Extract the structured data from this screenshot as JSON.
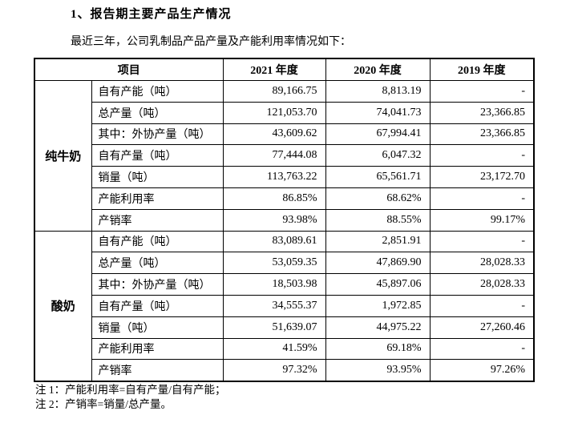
{
  "page": {
    "title": "1、报告期主要产品生产情况",
    "subtitle": "最近三年，公司乳制品产品产量及产能利用率情况如下："
  },
  "table": {
    "headers": [
      "项目",
      "2021 年度",
      "2020 年度",
      "2019 年度"
    ],
    "groups": [
      {
        "name": "纯牛奶",
        "rows": [
          {
            "label": "自有产能（吨）",
            "values": [
              "89,166.75",
              "8,813.19",
              "-"
            ]
          },
          {
            "label": "总产量（吨）",
            "values": [
              "121,053.70",
              "74,041.73",
              "23,366.85"
            ]
          },
          {
            "label": "其中：外协产量（吨）",
            "values": [
              "43,609.62",
              "67,994.41",
              "23,366.85"
            ]
          },
          {
            "label": "自有产量（吨）",
            "values": [
              "77,444.08",
              "6,047.32",
              "-"
            ]
          },
          {
            "label": "销量（吨）",
            "values": [
              "113,763.22",
              "65,561.71",
              "23,172.70"
            ]
          },
          {
            "label": "产能利用率",
            "values": [
              "86.85%",
              "68.62%",
              "-"
            ]
          },
          {
            "label": "产销率",
            "values": [
              "93.98%",
              "88.55%",
              "99.17%"
            ]
          }
        ]
      },
      {
        "name": "酸奶",
        "rows": [
          {
            "label": "自有产能（吨）",
            "values": [
              "83,089.61",
              "2,851.91",
              "-"
            ]
          },
          {
            "label": "总产量（吨）",
            "values": [
              "53,059.35",
              "47,869.90",
              "28,028.33"
            ]
          },
          {
            "label": "其中：外协产量（吨）",
            "values": [
              "18,503.98",
              "45,897.06",
              "28,028.33"
            ]
          },
          {
            "label": "自有产量（吨）",
            "values": [
              "34,555.37",
              "1,972.85",
              "-"
            ]
          },
          {
            "label": "销量（吨）",
            "values": [
              "51,639.07",
              "44,975.22",
              "27,260.46"
            ]
          },
          {
            "label": "产能利用率",
            "values": [
              "41.59%",
              "69.18%",
              "-"
            ]
          },
          {
            "label": "产销率",
            "values": [
              "97.32%",
              "93.95%",
              "97.26%"
            ]
          }
        ]
      }
    ]
  },
  "notes": [
    "注 1：产能利用率=自有产量/自有产能；",
    "注 2：产销率=销量/总产量。"
  ]
}
